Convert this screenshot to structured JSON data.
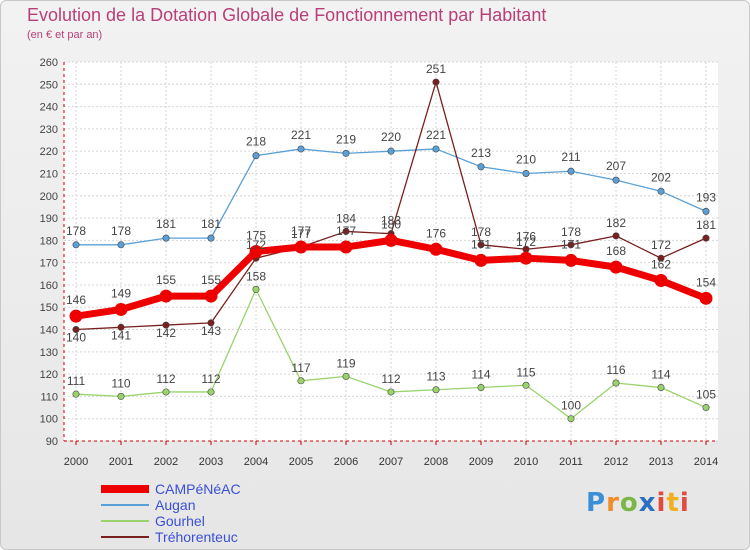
{
  "title": "Evolution de la Dotation Globale de Fonctionnement par Habitant",
  "subtitle": "(en € et par an)",
  "logo": {
    "text": "Proxiti",
    "letters": [
      "P",
      "r",
      "o",
      "x",
      "i",
      "t",
      "i"
    ]
  },
  "chart_data": {
    "type": "line",
    "categories": [
      "2000",
      "2001",
      "2002",
      "2003",
      "2004",
      "2005",
      "2006",
      "2007",
      "2008",
      "2009",
      "2010",
      "2011",
      "2012",
      "2013",
      "2014"
    ],
    "ylim": [
      90,
      260
    ],
    "yticks": [
      90,
      100,
      110,
      120,
      130,
      140,
      150,
      160,
      170,
      180,
      190,
      200,
      210,
      220,
      230,
      240,
      250,
      260
    ],
    "grid": true,
    "legend_position": "bottom-left",
    "series": [
      {
        "name": "Augan",
        "color": "#5aa0d6",
        "values": [
          178,
          178,
          181,
          181,
          218,
          221,
          219,
          220,
          221,
          213,
          210,
          211,
          207,
          202,
          193
        ]
      },
      {
        "name": "Gourhel",
        "color": "#9ad26b",
        "values": [
          111,
          110,
          112,
          112,
          158,
          117,
          119,
          112,
          113,
          114,
          115,
          100,
          116,
          114,
          105
        ]
      },
      {
        "name": "Tréhorenteuc",
        "color": "#7a1f1f",
        "values": [
          140,
          141,
          142,
          143,
          172,
          177,
          184,
          183,
          251,
          178,
          176,
          178,
          182,
          172,
          181
        ]
      },
      {
        "name": "CAMPéNéAC",
        "color": "#ee0000",
        "values": [
          146,
          149,
          155,
          155,
          175,
          177,
          177,
          180,
          176,
          171,
          172,
          171,
          168,
          162,
          154
        ]
      }
    ],
    "legend_order": [
      "CAMPéNéAC",
      "Augan",
      "Gourhel",
      "Tréhorenteuc"
    ]
  }
}
